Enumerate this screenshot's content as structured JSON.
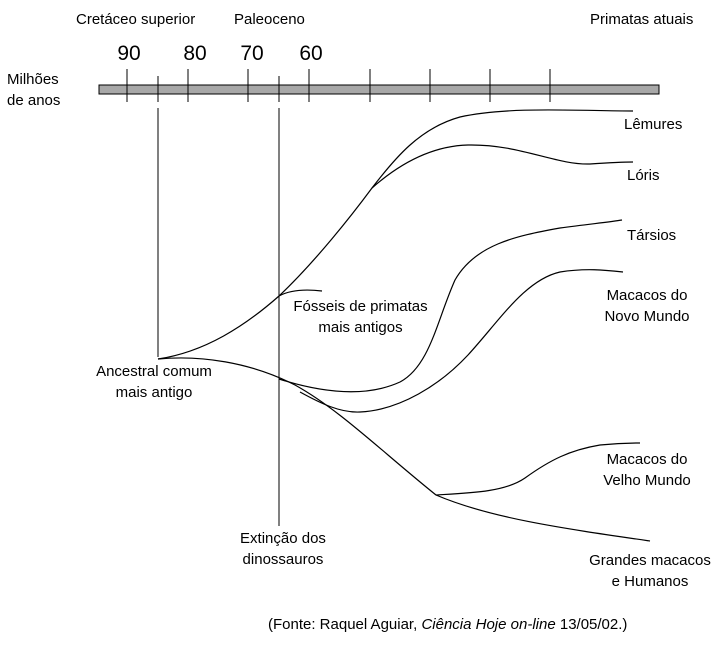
{
  "header": {
    "period_cretaceous": "Cretáceo superior",
    "period_paleocene": "Paleoceno",
    "present": "Primatas atuais"
  },
  "timeline": {
    "axis_label_line1": "Milhões",
    "axis_label_line2": "de anos",
    "ticks": [
      "90",
      "80",
      "70",
      "60"
    ]
  },
  "branches": {
    "lemurs": "Lêmures",
    "lorises": "Lóris",
    "tarsiers": "Társios",
    "new_world_line1": "Macacos do",
    "new_world_line2": "Novo Mundo",
    "old_world_line1": "Macacos do",
    "old_world_line2": "Velho Mundo",
    "apes_line1": "Grandes macacos",
    "apes_line2": "e Humanos"
  },
  "annotations": {
    "fossils_line1": "Fósseis de primatas",
    "fossils_line2": "mais antigos",
    "ancestor_line1": "Ancestral comum",
    "ancestor_line2": "mais antigo",
    "extinction_line1": "Extinção dos",
    "extinction_line2": "dinossauros"
  },
  "source": {
    "prefix": "(Fonte: Raquel Aguiar, ",
    "publication": "Ciência Hoje on-line",
    "suffix": " 13/05/02.)"
  },
  "colors": {
    "timeline_bar": "#a8a8a8",
    "lines": "#000000"
  }
}
